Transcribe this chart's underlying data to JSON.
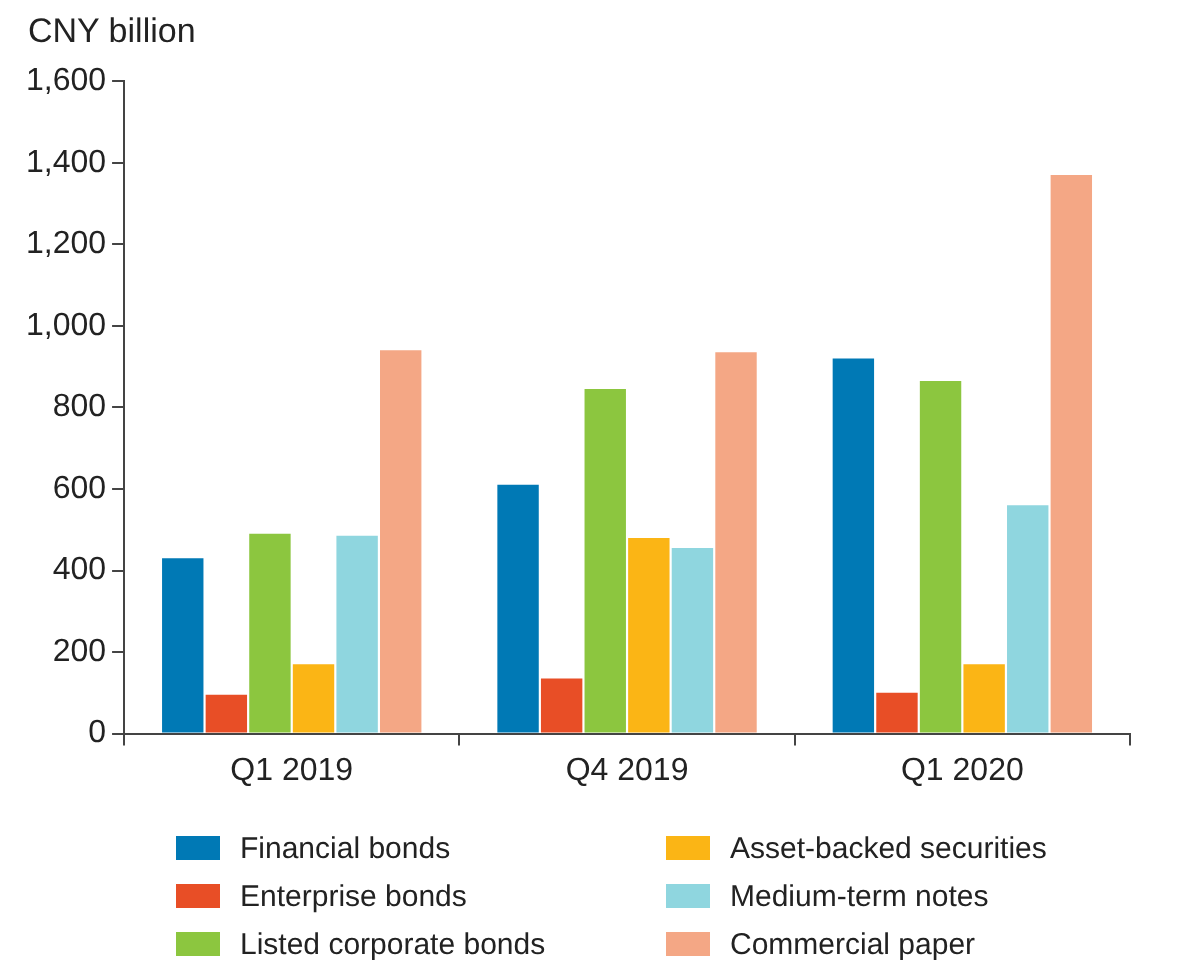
{
  "chart_data": {
    "type": "bar",
    "ylabel": "CNY billion",
    "categories": [
      "Q1 2019",
      "Q4 2019",
      "Q1 2020"
    ],
    "series": [
      {
        "name": "Financial bonds",
        "color": "#0079b5",
        "values": [
          430,
          610,
          920
        ]
      },
      {
        "name": "Enterprise bonds",
        "color": "#e84e26",
        "values": [
          95,
          135,
          100
        ]
      },
      {
        "name": "Listed corporate bonds",
        "color": "#8cc63f",
        "values": [
          490,
          845,
          865
        ]
      },
      {
        "name": "Asset-backed securities",
        "color": "#fbb515",
        "values": [
          170,
          480,
          170
        ]
      },
      {
        "name": "Medium-term notes",
        "color": "#8fd6df",
        "values": [
          485,
          455,
          560
        ]
      },
      {
        "name": "Commercial paper",
        "color": "#f4a785",
        "values": [
          940,
          935,
          1370
        ]
      }
    ],
    "ylim": [
      0,
      1600
    ],
    "yticks": [
      0,
      200,
      400,
      600,
      800,
      {
        "value": 1000,
        "label": "1,000"
      },
      {
        "value": 1200,
        "label": "1,200"
      },
      {
        "value": 1400,
        "label": "1,400"
      },
      {
        "value": 1600,
        "label": "1,600"
      }
    ],
    "grid": false,
    "legend": "bottom"
  }
}
